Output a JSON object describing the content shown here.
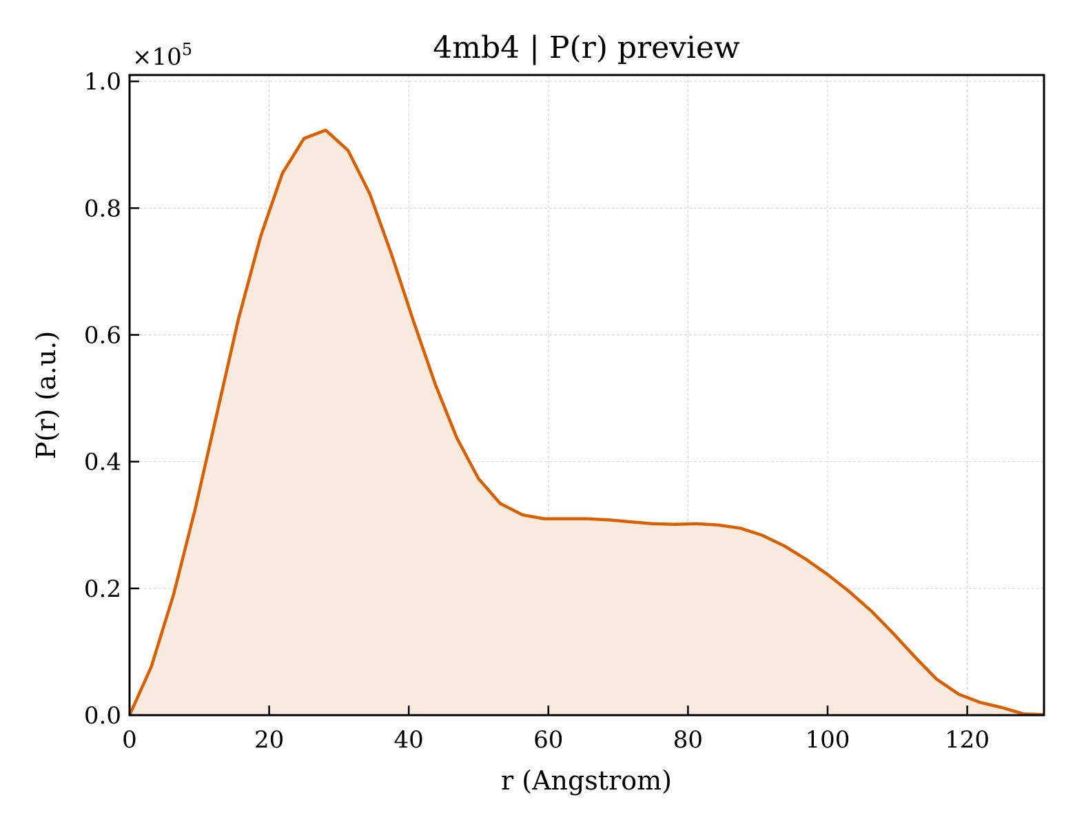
{
  "chart_data": {
    "type": "area",
    "title": "4mb4 | P(r) preview",
    "xlabel": "r (Angstrom)",
    "ylabel": "P(r) (a.u.)",
    "y_multiplier": {
      "base": "×10",
      "exponent": "5"
    },
    "xlim": [
      0,
      131
    ],
    "ylim": [
      0,
      1.01
    ],
    "x_ticks": [
      0,
      20,
      40,
      60,
      80,
      100,
      120
    ],
    "x_tick_labels": [
      "0",
      "20",
      "40",
      "60",
      "80",
      "100",
      "120"
    ],
    "y_ticks": [
      0,
      0.2,
      0.4,
      0.6,
      0.8,
      1.0
    ],
    "y_tick_labels": [
      "0.0",
      "0.2",
      "0.4",
      "0.6",
      "0.8",
      "1.0"
    ],
    "grid": true,
    "series": [
      {
        "line_color": "#d95f02",
        "fill_color": "#f9eadf",
        "x": [
          0,
          3.1,
          6.3,
          9.4,
          12.5,
          15.6,
          18.8,
          21.9,
          25.0,
          28.1,
          31.3,
          34.4,
          37.5,
          40.6,
          43.8,
          46.9,
          50.0,
          53.1,
          56.3,
          59.4,
          62.5,
          65.6,
          68.8,
          71.9,
          75.0,
          78.1,
          81.3,
          84.4,
          87.5,
          90.6,
          93.8,
          96.9,
          100.0,
          103.1,
          106.3,
          109.4,
          112.5,
          115.6,
          118.8,
          121.9,
          125.0,
          128.1,
          131.0
        ],
        "y": [
          0.0,
          0.076,
          0.19,
          0.325,
          0.475,
          0.625,
          0.756,
          0.855,
          0.91,
          0.923,
          0.891,
          0.823,
          0.728,
          0.624,
          0.522,
          0.437,
          0.373,
          0.334,
          0.316,
          0.31,
          0.31,
          0.31,
          0.308,
          0.305,
          0.302,
          0.301,
          0.302,
          0.3,
          0.295,
          0.284,
          0.267,
          0.246,
          0.222,
          0.195,
          0.164,
          0.129,
          0.092,
          0.057,
          0.033,
          0.02,
          0.012,
          0.002,
          0.001
        ]
      }
    ]
  }
}
